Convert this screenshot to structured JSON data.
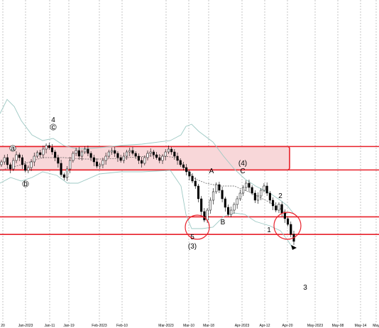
{
  "chart_data": {
    "type": "candlestick",
    "colors": {
      "background": "#ffffff",
      "resistance_zone_fill": "#f8d7d9",
      "resistance_zone_stroke": "#e8202a",
      "support_line": "#e8202a",
      "bollinger": "#9ec9c4",
      "moving_average": "#555555",
      "bull_candle": "#ffffff",
      "bear_candle": "#000000",
      "grid": "#a0a0a0"
    },
    "x_tick_labels": [
      "20",
      "Jan-2023",
      "Jan-11",
      "Jan-19",
      "Feb-2023",
      "Feb-10",
      "Mar-2023",
      "Mar-10",
      "Mar-18",
      "Apr-2023",
      "Apr-12",
      "Apr-20",
      "May-2023",
      "May-08",
      "May-14",
      "May"
    ],
    "wave_labels": [
      "4",
      "c",
      "a",
      "b",
      "A",
      "(4)",
      "C",
      "2",
      "B",
      "5",
      "(3)",
      "1",
      "3"
    ],
    "price_levels": [
      {
        "name": "resistance-top",
        "value": 100
      },
      {
        "name": "resistance-bottom",
        "value": 92
      },
      {
        "name": "support-1",
        "value": 76
      },
      {
        "name": "support-2",
        "value": 70
      }
    ],
    "highlight_circles": [
      "wave-5-circle",
      "wave-1-circle"
    ],
    "grid": true,
    "ylim": [
      40,
      150
    ]
  }
}
